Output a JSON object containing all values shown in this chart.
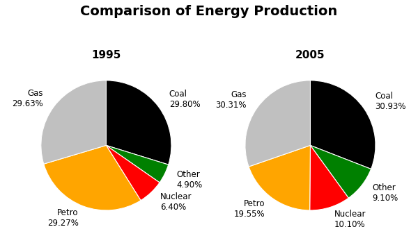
{
  "title": "Comparison of Energy Production",
  "charts": [
    {
      "year": "1995",
      "labels": [
        "Coal",
        "Other",
        "Nuclear",
        "Petro",
        "Gas"
      ],
      "values": [
        29.8,
        4.9,
        6.4,
        29.27,
        29.63
      ],
      "colors": [
        "#000000",
        "#008000",
        "#ff0000",
        "#ffa500",
        "#c0c0c0"
      ],
      "startangle": 90,
      "label_pcts": [
        "29.80%",
        "4.90%",
        "6.40%",
        "29.27%",
        "29.63%"
      ]
    },
    {
      "year": "2005",
      "labels": [
        "Coal",
        "Other",
        "Nuclear",
        "Petro",
        "Gas"
      ],
      "values": [
        30.93,
        9.1,
        10.1,
        19.55,
        30.31
      ],
      "colors": [
        "#000000",
        "#008000",
        "#ff0000",
        "#ffa500",
        "#c0c0c0"
      ],
      "startangle": 90,
      "label_pcts": [
        "30.93%",
        "9.10%",
        "10.10%",
        "19.55%",
        "30.31%"
      ]
    }
  ],
  "title_fontsize": 14,
  "year_fontsize": 11,
  "label_fontsize": 8.5,
  "year_color": "#000000",
  "background_color": "#ffffff"
}
